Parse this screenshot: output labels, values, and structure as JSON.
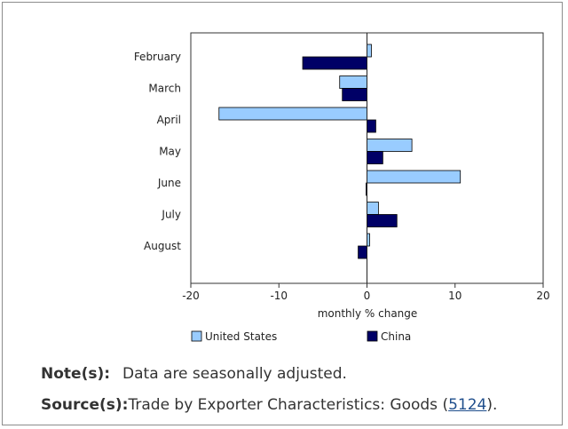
{
  "chart_data": {
    "type": "bar",
    "orientation": "horizontal",
    "categories": [
      "February",
      "March",
      "April",
      "May",
      "June",
      "July",
      "August"
    ],
    "series": [
      {
        "name": "United States",
        "values": [
          0.5,
          -3.1,
          -16.8,
          5.1,
          10.6,
          1.3,
          0.3
        ],
        "color": "#99ccff"
      },
      {
        "name": "China",
        "values": [
          -7.3,
          -2.8,
          1.0,
          1.8,
          -0.1,
          3.4,
          -1.0
        ],
        "color": "#000066"
      }
    ],
    "xlabel": "monthly % change",
    "xlim": [
      -20,
      20
    ],
    "xticks": [
      "-20",
      "-10",
      "0",
      "10",
      "20"
    ],
    "xtick_values": [
      -20,
      -10,
      0,
      10,
      20
    ],
    "legend_position": "bottom"
  },
  "notes": {
    "note_label": "Note(s):",
    "note_text": "Data are seasonally adjusted.",
    "source_label": "Source(s):",
    "source_text": "Trade by Exporter Characteristics: Goods (",
    "source_link": "5124",
    "source_suffix": ")."
  }
}
